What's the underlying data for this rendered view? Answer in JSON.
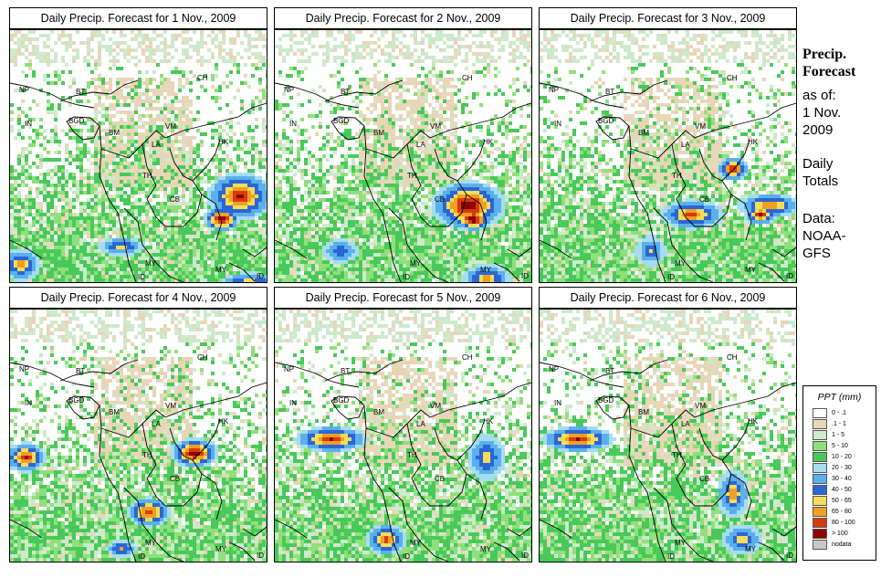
{
  "panels": [
    {
      "title": "Daily Precip. Forecast for  1 Nov., 2009"
    },
    {
      "title": "Daily Precip. Forecast for  2 Nov., 2009"
    },
    {
      "title": "Daily Precip. Forecast for  3 Nov., 2009"
    },
    {
      "title": "Daily Precip. Forecast for  4 Nov., 2009"
    },
    {
      "title": "Daily Precip. Forecast for  5 Nov., 2009"
    },
    {
      "title": "Daily Precip. Forecast for  6 Nov., 2009"
    }
  ],
  "country_labels": [
    "NP",
    "BT",
    "BGD",
    "IN",
    "BM",
    "CH",
    "VM",
    "LA",
    "TH",
    "CB",
    "MY",
    "ID",
    "HK"
  ],
  "side": {
    "title_line1": "Precip.",
    "title_line2": "Forecast",
    "asof_line1": "as of:",
    "asof_line2": "1 Nov.",
    "asof_line3": "2009",
    "daily_line1": "Daily",
    "daily_line2": "Totals",
    "data_line1": "Data:",
    "data_line2": "NOAA-",
    "data_line3": "GFS"
  },
  "legend": {
    "title": "PPT (mm)",
    "items": [
      {
        "label": "0 - .1",
        "color": "#ffffff"
      },
      {
        "label": ".1 - 1",
        "color": "#e8d6b8"
      },
      {
        "label": "1 - 5",
        "color": "#cdeacc"
      },
      {
        "label": "5 - 10",
        "color": "#8fe07a"
      },
      {
        "label": "10 - 20",
        "color": "#49c95a"
      },
      {
        "label": "20 - 30",
        "color": "#a6dcf2"
      },
      {
        "label": "30 - 40",
        "color": "#5ab0ea"
      },
      {
        "label": "40 - 50",
        "color": "#2a66d6"
      },
      {
        "label": "50 - 65",
        "color": "#f5dc5a"
      },
      {
        "label": "65 - 80",
        "color": "#f0a020"
      },
      {
        "label": "80 - 100",
        "color": "#d83a10"
      },
      {
        "label": "> 100",
        "color": "#8c0000"
      },
      {
        "label": "nodata",
        "color": "#c8c8c8"
      }
    ]
  }
}
